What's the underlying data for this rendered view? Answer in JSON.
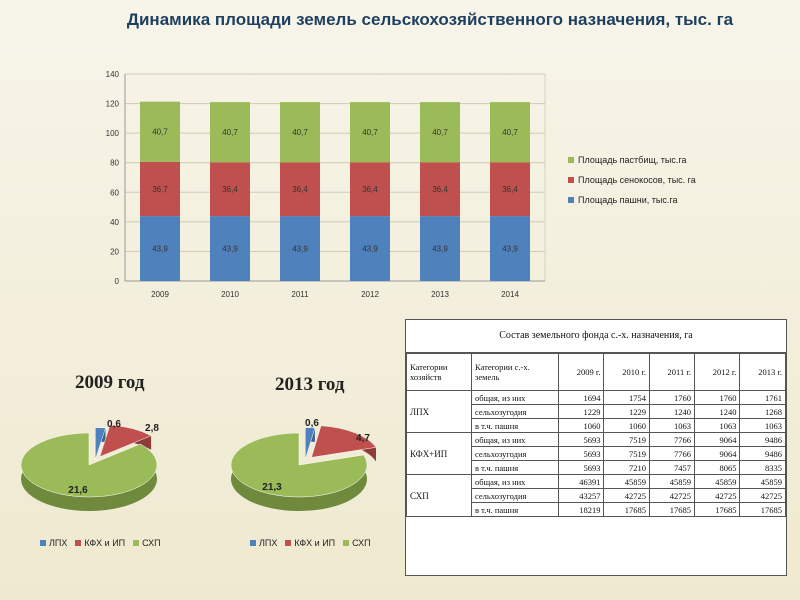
{
  "title": "Динамика площади земель сельскохозяйственного назначения, тыс. га",
  "colors": {
    "pasture": "#9bbb59",
    "hay": "#c0504d",
    "arable": "#4f81bd",
    "lph": "#4f81bd",
    "kfh": "#c0504d",
    "shp": "#9bbb59"
  },
  "chart_data": [
    {
      "type": "bar",
      "stacked": true,
      "categories": [
        "2009",
        "2010",
        "2011",
        "2012",
        "2013",
        "2014"
      ],
      "series": [
        {
          "name": "Площадь пашни, тыс.га",
          "values": [
            43.9,
            43.9,
            43.9,
            43.9,
            43.9,
            43.9
          ],
          "labels": [
            "43,9",
            "43,9",
            "43,9",
            "43,9",
            "43,9",
            "43,9"
          ]
        },
        {
          "name": "Площадь сенокосов, тыс. га",
          "values": [
            36.7,
            36.4,
            36.4,
            36.4,
            36.4,
            36.4
          ],
          "labels": [
            "36,7",
            "36,4",
            "36,4",
            "36,4",
            "36,4",
            "36,4"
          ]
        },
        {
          "name": "Площадь пастбищ, тыс.га",
          "values": [
            40.7,
            40.7,
            40.7,
            40.7,
            40.7,
            40.7
          ],
          "labels": [
            "40,7",
            "40,7",
            "40,7",
            "40,7",
            "40,7",
            "40,7"
          ]
        }
      ],
      "legend_order": [
        "Площадь пастбищ, тыс.га",
        "Площадь сенокосов, тыс. га",
        "Площадь пашни, тыс.га"
      ],
      "ylim": [
        0,
        140
      ],
      "yticks": [
        "0",
        "20",
        "40",
        "60",
        "80",
        "100",
        "120",
        "140"
      ],
      "legend": "right",
      "grid": true
    },
    {
      "type": "pie",
      "title": "2009 год",
      "categories": [
        "ЛПХ",
        "КФХ и ИП",
        "СХП"
      ],
      "values": [
        0.6,
        2.8,
        21.6
      ],
      "labels": [
        "0,6",
        "2,8",
        "21,6"
      ],
      "legend": "bottom"
    },
    {
      "type": "pie",
      "title": "2013 год",
      "categories": [
        "ЛПХ",
        "КФХ и ИП",
        "СХП"
      ],
      "values": [
        0.6,
        4.7,
        21.3
      ],
      "labels": [
        "0,6",
        "4,7",
        "21,3"
      ],
      "legend": "bottom"
    }
  ],
  "table": {
    "caption": "Состав  земельного фонда с.-х. назначения, га",
    "head": [
      "Категории хозяйств",
      "Категории с.-х. земель",
      "2009 г.",
      "2010 г.",
      "2011 г.",
      "2012 г.",
      "2013 г."
    ],
    "groups": [
      {
        "name": "ЛПХ",
        "rows": [
          {
            "label": "общая, из них",
            "values": [
              "1694",
              "1754",
              "1760",
              "1760",
              "1761"
            ]
          },
          {
            "label": "сельхозугодия",
            "values": [
              "1229",
              "1229",
              "1240",
              "1240",
              "1268"
            ]
          },
          {
            "label": "в т.ч. пашня",
            "values": [
              "1060",
              "1060",
              "1063",
              "1063",
              "1063"
            ]
          }
        ]
      },
      {
        "name": "КФХ+ИП",
        "rows": [
          {
            "label": "общая, из них",
            "values": [
              "5693",
              "7519",
              "7766",
              "9064",
              "9486"
            ]
          },
          {
            "label": "сельхозугодия",
            "values": [
              "5693",
              "7519",
              "7766",
              "9064",
              "9486"
            ]
          },
          {
            "label": "в т.ч. пашня",
            "values": [
              "5693",
              "7210",
              "7457",
              "8065",
              "8335"
            ]
          }
        ]
      },
      {
        "name": "СХП",
        "rows": [
          {
            "label": "общая, из них",
            "values": [
              "46391",
              "45859",
              "45859",
              "45859",
              "45859"
            ]
          },
          {
            "label": "сельхозугодия",
            "values": [
              "43257",
              "42725",
              "42725",
              "42725",
              "42725"
            ]
          },
          {
            "label": "в т.ч. пашня",
            "values": [
              "18219",
              "17685",
              "17685",
              "17685",
              "17685"
            ]
          }
        ]
      }
    ]
  }
}
